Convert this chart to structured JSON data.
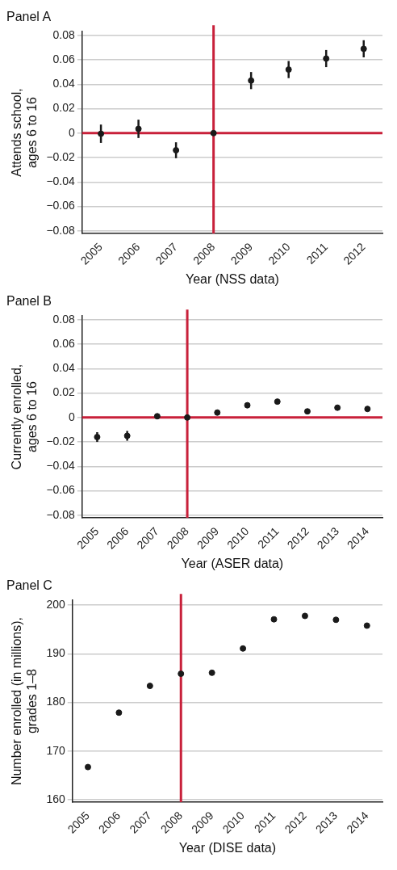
{
  "chart_data": [
    {
      "type": "scatter",
      "title": "Panel A",
      "xlabel": "Year (NSS data)",
      "ylabel": "Attends school,\nages 6 to 16",
      "categories": [
        "2005",
        "2006",
        "2007",
        "2008",
        "2009",
        "2010",
        "2011",
        "2012"
      ],
      "series": [
        {
          "color": "#1a1a1a",
          "values": [
            -0.0005,
            0.0035,
            -0.014,
            0,
            0.043,
            0.052,
            0.061,
            0.069
          ],
          "errors": [
            0.0075,
            0.0075,
            0.0065,
            null,
            0.007,
            0.007,
            0.007,
            0.007
          ]
        }
      ],
      "ylim": [
        -0.082,
        0.083
      ],
      "yticks": [
        {
          "value": -0.08,
          "label": "−0.08"
        },
        {
          "value": -0.06,
          "label": "−0.06"
        },
        {
          "value": -0.04,
          "label": "−0.04"
        },
        {
          "value": -0.02,
          "label": "−0.02"
        },
        0,
        0.02,
        0.04,
        0.06,
        0.08
      ],
      "ref_lines": [
        {
          "axis": "x",
          "value": "2008",
          "color": "#c8203a"
        },
        {
          "axis": "y",
          "value": 0,
          "color": "#c8203a"
        }
      ],
      "grid": "y",
      "marker": "circle",
      "legend": false
    },
    {
      "type": "scatter",
      "title": "Panel B",
      "xlabel": "Year (ASER data)",
      "ylabel": "Currently enrolled,\nages 6 to 16",
      "categories": [
        "2005",
        "2006",
        "2007",
        "2008",
        "2009",
        "2010",
        "2011",
        "2012",
        "2013",
        "2014"
      ],
      "series": [
        {
          "color": "#1a1a1a",
          "values": [
            -0.016,
            -0.015,
            0.001,
            0,
            0.004,
            0.01,
            0.013,
            0.005,
            0.008,
            0.007
          ],
          "errors": [
            0.004,
            0.004,
            0.002,
            null,
            0.002,
            0.002,
            0.002,
            0.002,
            0.002,
            0.002
          ]
        }
      ],
      "ylim": [
        -0.082,
        0.083
      ],
      "yticks": [
        {
          "value": -0.08,
          "label": "−0.08"
        },
        {
          "value": -0.06,
          "label": "−0.06"
        },
        {
          "value": -0.04,
          "label": "−0.04"
        },
        {
          "value": -0.02,
          "label": "−0.02"
        },
        0,
        0.02,
        0.04,
        0.06,
        0.08
      ],
      "ref_lines": [
        {
          "axis": "x",
          "value": "2008",
          "color": "#c8203a"
        },
        {
          "axis": "y",
          "value": 0,
          "color": "#c8203a"
        }
      ],
      "grid": "y",
      "marker": "circle",
      "legend": false
    },
    {
      "type": "scatter",
      "title": "Panel C",
      "xlabel": "Year (DISE data)",
      "ylabel": "Number enrolled (in millions),\ngrades 1–8",
      "categories": [
        "2005",
        "2006",
        "2007",
        "2008",
        "2009",
        "2010",
        "2011",
        "2012",
        "2013",
        "2014"
      ],
      "series": [
        {
          "color": "#1a1a1a",
          "values": [
            166.7,
            177.9,
            183.4,
            185.9,
            186.1,
            191.1,
            197.1,
            197.8,
            197.0,
            195.8
          ]
        }
      ],
      "ylim": [
        159.5,
        201
      ],
      "yticks": [
        160,
        170,
        180,
        190,
        200
      ],
      "ref_lines": [
        {
          "axis": "x",
          "value": "2008",
          "color": "#c8203a"
        }
      ],
      "grid": "y",
      "marker": "circle",
      "legend": false
    }
  ]
}
